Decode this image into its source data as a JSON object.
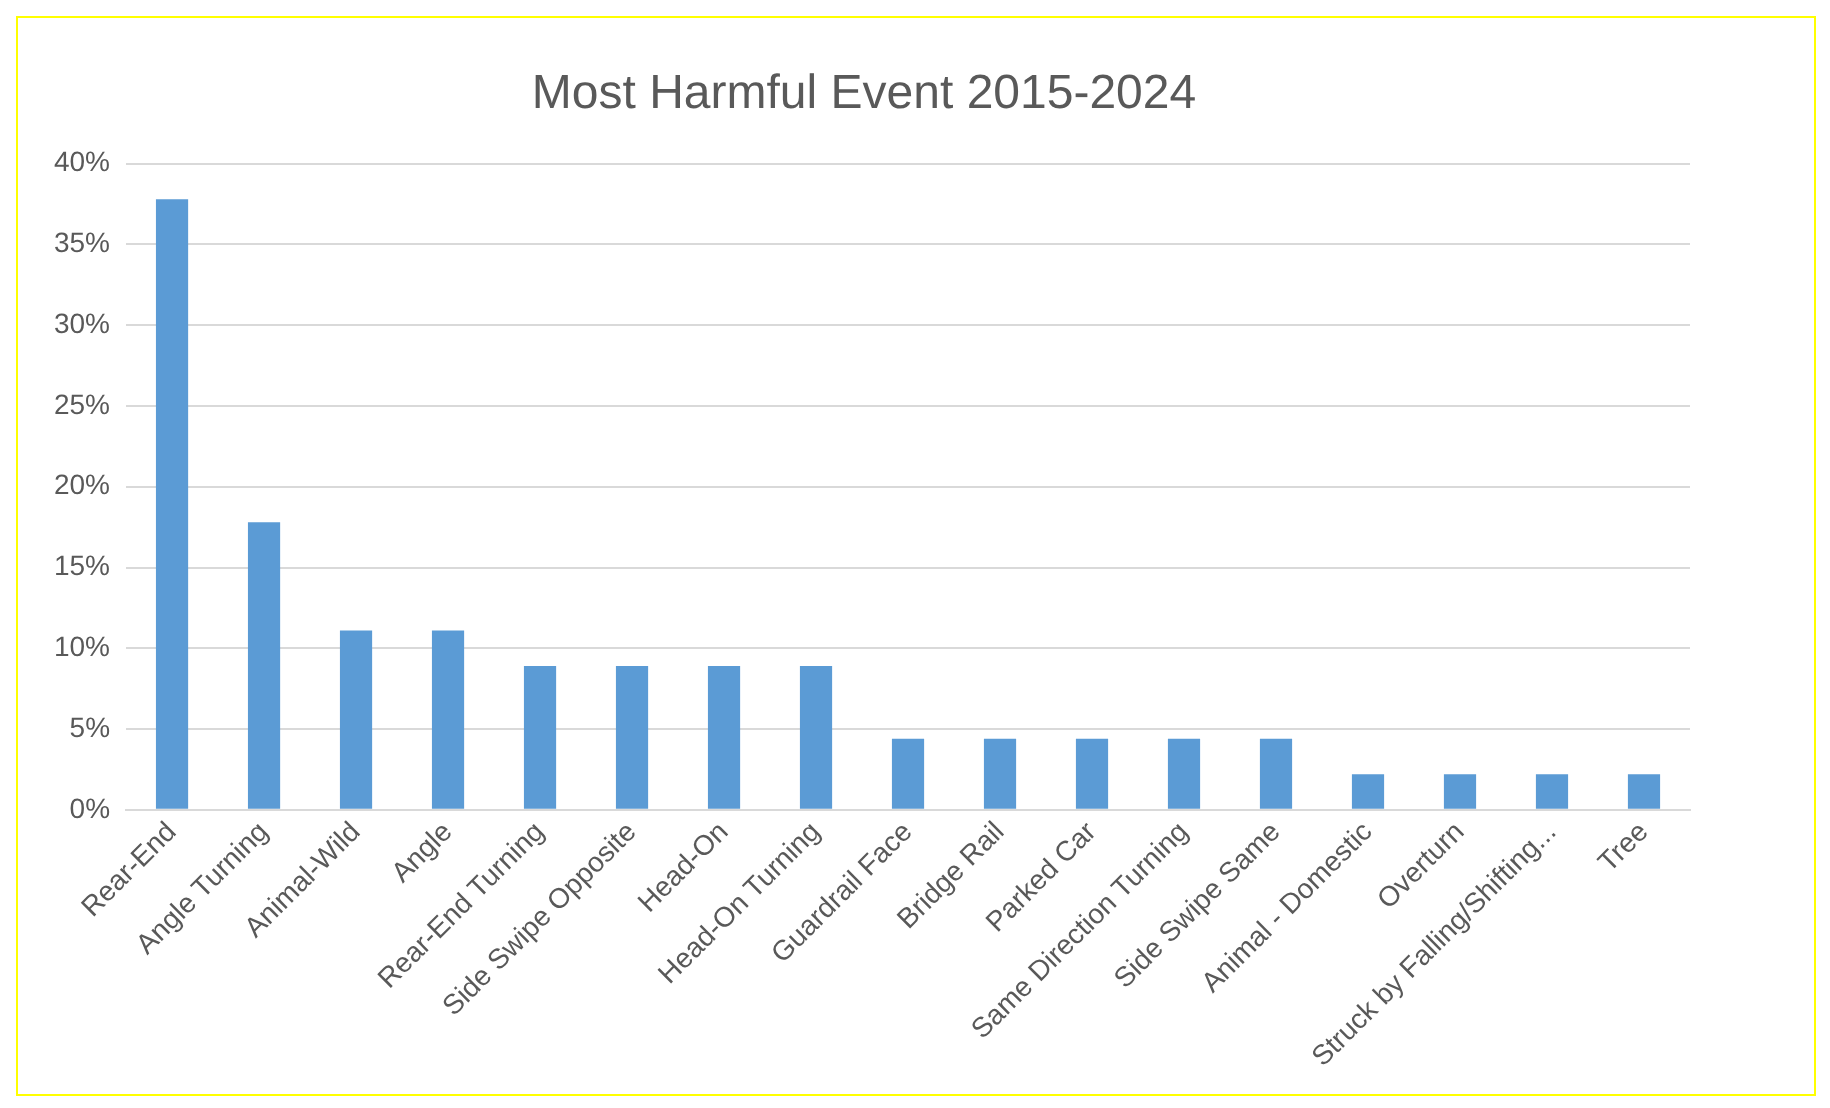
{
  "chart_data": {
    "type": "bar",
    "title": "Most Harmful Event 2015-2024",
    "categories": [
      "Rear-End",
      "Angle Turning",
      "Animal-Wild",
      "Angle",
      "Rear-End Turning",
      "Side Swipe Opposite",
      "Head-On",
      "Head-On Turning",
      "Guardrail Face",
      "Bridge Rail",
      "Parked Car",
      "Same Direction Turning",
      "Side Swipe Same",
      "Animal - Domestic",
      "Overturn",
      "Struck by Falling/Shifting...",
      "Tree"
    ],
    "values": [
      37.8,
      17.8,
      11.1,
      11.1,
      8.9,
      8.9,
      8.9,
      8.9,
      4.4,
      4.4,
      4.4,
      4.4,
      4.4,
      2.2,
      2.2,
      2.2,
      2.2
    ],
    "color": "#5b9bd5",
    "ylim": [
      0,
      40
    ],
    "yticks": [
      {
        "value": 0,
        "label": "0%"
      },
      {
        "value": 5,
        "label": "5%"
      },
      {
        "value": 10,
        "label": "10%"
      },
      {
        "value": 15,
        "label": "15%"
      },
      {
        "value": 20,
        "label": "20%"
      },
      {
        "value": 25,
        "label": "25%"
      },
      {
        "value": 30,
        "label": "30%"
      },
      {
        "value": 35,
        "label": "35%"
      },
      {
        "value": 40,
        "label": "40%"
      }
    ],
    "grid": "y",
    "legend": false
  }
}
